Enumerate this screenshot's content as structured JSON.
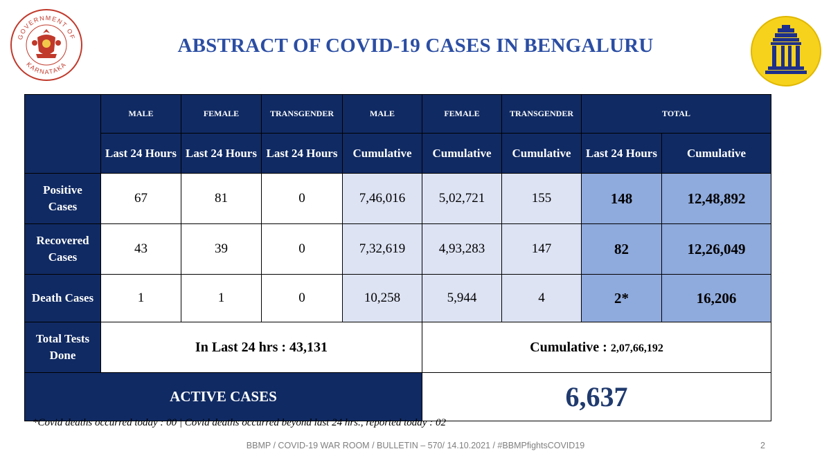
{
  "header": {
    "title": "ABSTRACT OF COVID-19 CASES IN BENGALURU",
    "gov_logo_text_top": "GOVERNMENT OF",
    "gov_logo_text_bottom": "KARNATAKA"
  },
  "table": {
    "group_headers": [
      "MALE",
      "FEMALE",
      "TRANSGENDER",
      "MALE",
      "FEMALE",
      "TRANSGENDER",
      "TOTAL"
    ],
    "sub_headers": [
      "Last 24 Hours",
      "Last 24 Hours",
      "Last 24 Hours",
      "Cumulative",
      "Cumulative",
      "Cumulative",
      "Last 24 Hours",
      "Cumulative"
    ],
    "rows": [
      {
        "label_line1": "Positive",
        "label_line2": "Cases",
        "values": [
          "67",
          "81",
          "0",
          "7,46,016",
          "5,02,721",
          "155",
          "148",
          "12,48,892"
        ]
      },
      {
        "label_line1": "Recovered",
        "label_line2": "Cases",
        "values": [
          "43",
          "39",
          "0",
          "7,32,619",
          "4,93,283",
          "147",
          "82",
          "12,26,049"
        ]
      },
      {
        "label": "Death Cases",
        "values": [
          "1",
          "1",
          "0",
          "10,258",
          "5,944",
          "4",
          "2*",
          "16,206"
        ]
      }
    ],
    "tests": {
      "label_line1": "Total Tests",
      "label_line2": "Done",
      "last24_label": "In Last 24 hrs : 43,131",
      "cumulative_label": "Cumulative : ",
      "cumulative_value": "2,07,66,192"
    },
    "active": {
      "label": "ACTIVE CASES",
      "value": "6,637"
    }
  },
  "footnote": "*Covid deaths occurred today : 00 | Covid deaths occurred beyond last 24 hrs., reported today : 02",
  "footer": {
    "bulletin": "BBMP / COVID-19 WAR ROOM / BULLETIN – 570/ 14.10.2021 / #BBMPfightsCOVID19",
    "page_number": "2"
  },
  "colors": {
    "title": "#2b4ea3",
    "header_navy": "#102a63",
    "cumulative_cell": "#dde3f3",
    "total_cell": "#8faadc",
    "logo_gold": "#f7d21c",
    "seal_red": "#c0392b"
  }
}
